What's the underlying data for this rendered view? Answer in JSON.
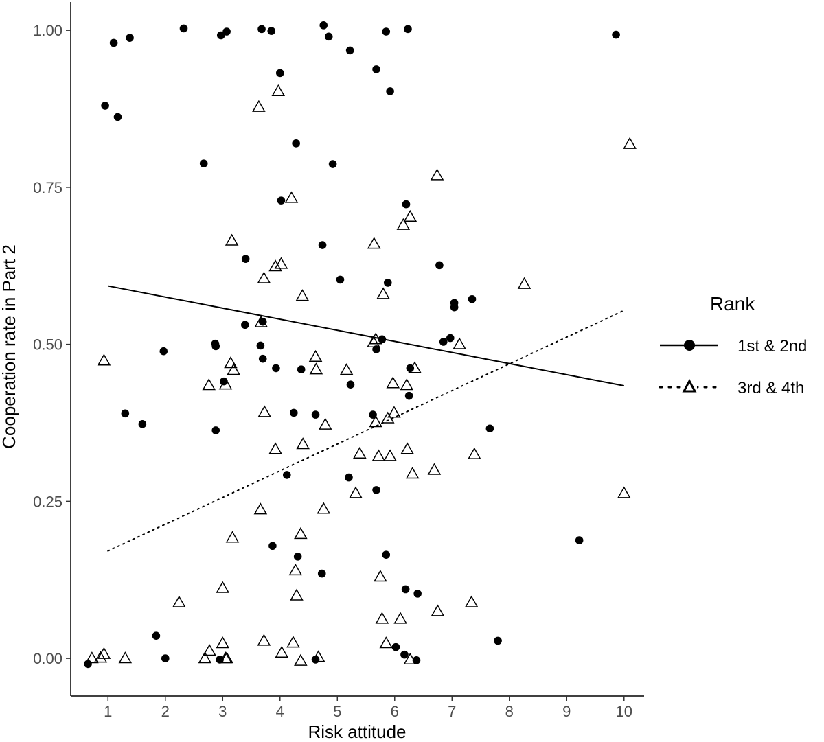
{
  "chart_data": {
    "type": "scatter",
    "title": "",
    "xlabel": "Risk attitude",
    "ylabel": "Cooperation rate in Part 2",
    "xlim": [
      0.35,
      10.35
    ],
    "ylim": [
      -0.06,
      1.045
    ],
    "x_ticks": [
      "1",
      "2",
      "3",
      "4",
      "5",
      "6",
      "7",
      "8",
      "9",
      "10"
    ],
    "y_ticks": [
      "0.00",
      "0.25",
      "0.50",
      "0.75",
      "1.00"
    ],
    "grid": false,
    "legend": {
      "title": "Rank",
      "placement": "right",
      "entries": [
        "1st & 2nd",
        "3rd & 4th"
      ]
    },
    "series": [
      {
        "name": "1st & 2nd",
        "marker": "filled-circle",
        "line_style": "solid",
        "color": "#000000",
        "trend": {
          "x": [
            1,
            10
          ],
          "y": [
            0.593,
            0.434
          ]
        },
        "points": [
          [
            0.95,
            0.88
          ],
          [
            1.1,
            0.98
          ],
          [
            1.17,
            0.862
          ],
          [
            1.38,
            0.988
          ],
          [
            2.32,
            1.003
          ],
          [
            2.97,
            0.992
          ],
          [
            3.07,
            0.998
          ],
          [
            3.68,
            1.002
          ],
          [
            3.85,
            0.999
          ],
          [
            4.0,
            0.932
          ],
          [
            4.76,
            1.008
          ],
          [
            4.85,
            0.99
          ],
          [
            5.22,
            0.968
          ],
          [
            5.68,
            0.938
          ],
          [
            5.85,
            0.998
          ],
          [
            6.23,
            1.002
          ],
          [
            5.92,
            0.903
          ],
          [
            9.86,
            0.993
          ],
          [
            2.67,
            0.788
          ],
          [
            4.28,
            0.82
          ],
          [
            4.92,
            0.787
          ],
          [
            4.02,
            0.729
          ],
          [
            6.2,
            0.723
          ],
          [
            4.74,
            0.658
          ],
          [
            3.4,
            0.636
          ],
          [
            6.78,
            0.626
          ],
          [
            5.05,
            0.603
          ],
          [
            5.88,
            0.598
          ],
          [
            7.35,
            0.572
          ],
          [
            7.04,
            0.566
          ],
          [
            7.04,
            0.559
          ],
          [
            3.39,
            0.531
          ],
          [
            3.7,
            0.536
          ],
          [
            5.78,
            0.508
          ],
          [
            6.97,
            0.51
          ],
          [
            6.85,
            0.504
          ],
          [
            5.68,
            0.492
          ],
          [
            3.66,
            0.498
          ],
          [
            2.87,
            0.501
          ],
          [
            2.88,
            0.497
          ],
          [
            1.97,
            0.489
          ],
          [
            3.7,
            0.477
          ],
          [
            3.93,
            0.462
          ],
          [
            4.37,
            0.46
          ],
          [
            6.27,
            0.462
          ],
          [
            3.02,
            0.441
          ],
          [
            5.23,
            0.436
          ],
          [
            6.25,
            0.418
          ],
          [
            1.3,
            0.39
          ],
          [
            4.24,
            0.391
          ],
          [
            4.62,
            0.388
          ],
          [
            5.62,
            0.388
          ],
          [
            1.6,
            0.373
          ],
          [
            2.88,
            0.363
          ],
          [
            7.66,
            0.366
          ],
          [
            4.12,
            0.292
          ],
          [
            5.2,
            0.288
          ],
          [
            5.68,
            0.268
          ],
          [
            3.87,
            0.179
          ],
          [
            9.22,
            0.188
          ],
          [
            4.31,
            0.162
          ],
          [
            5.85,
            0.165
          ],
          [
            4.73,
            0.135
          ],
          [
            6.19,
            0.11
          ],
          [
            6.4,
            0.103
          ],
          [
            1.84,
            0.036
          ],
          [
            7.8,
            0.028
          ],
          [
            2.0,
            0.0
          ],
          [
            2.95,
            -0.002
          ],
          [
            6.02,
            0.018
          ],
          [
            6.17,
            0.006
          ],
          [
            6.38,
            -0.003
          ],
          [
            4.62,
            -0.002
          ],
          [
            0.65,
            -0.009
          ]
        ]
      },
      {
        "name": "3rd & 4th",
        "marker": "open-triangle",
        "line_style": "dotted",
        "color": "#000000",
        "trend": {
          "x": [
            1,
            10
          ],
          "y": [
            0.171,
            0.554
          ]
        },
        "points": [
          [
            3.97,
            0.903
          ],
          [
            3.63,
            0.878
          ],
          [
            10.1,
            0.819
          ],
          [
            6.74,
            0.769
          ],
          [
            4.2,
            0.733
          ],
          [
            6.27,
            0.703
          ],
          [
            6.15,
            0.69
          ],
          [
            3.16,
            0.665
          ],
          [
            5.64,
            0.66
          ],
          [
            4.02,
            0.628
          ],
          [
            3.92,
            0.624
          ],
          [
            3.72,
            0.605
          ],
          [
            8.26,
            0.596
          ],
          [
            4.39,
            0.577
          ],
          [
            5.8,
            0.58
          ],
          [
            3.67,
            0.535
          ],
          [
            5.67,
            0.508
          ],
          [
            5.63,
            0.503
          ],
          [
            7.13,
            0.5
          ],
          [
            0.93,
            0.474
          ],
          [
            3.14,
            0.47
          ],
          [
            4.62,
            0.48
          ],
          [
            5.16,
            0.459
          ],
          [
            3.19,
            0.459
          ],
          [
            4.63,
            0.46
          ],
          [
            2.76,
            0.435
          ],
          [
            3.05,
            0.436
          ],
          [
            5.97,
            0.438
          ],
          [
            6.21,
            0.435
          ],
          [
            6.35,
            0.462
          ],
          [
            3.73,
            0.392
          ],
          [
            5.99,
            0.391
          ],
          [
            5.88,
            0.382
          ],
          [
            4.79,
            0.372
          ],
          [
            5.67,
            0.376
          ],
          [
            3.92,
            0.333
          ],
          [
            4.4,
            0.341
          ],
          [
            5.39,
            0.326
          ],
          [
            5.72,
            0.322
          ],
          [
            5.92,
            0.322
          ],
          [
            6.22,
            0.333
          ],
          [
            7.39,
            0.325
          ],
          [
            6.31,
            0.294
          ],
          [
            6.69,
            0.3
          ],
          [
            5.32,
            0.263
          ],
          [
            10.0,
            0.263
          ],
          [
            3.66,
            0.237
          ],
          [
            4.76,
            0.238
          ],
          [
            4.36,
            0.198
          ],
          [
            3.17,
            0.192
          ],
          [
            4.27,
            0.14
          ],
          [
            5.75,
            0.13
          ],
          [
            3.0,
            0.112
          ],
          [
            4.29,
            0.1
          ],
          [
            2.24,
            0.089
          ],
          [
            6.75,
            0.075
          ],
          [
            7.34,
            0.089
          ],
          [
            5.78,
            0.063
          ],
          [
            6.1,
            0.063
          ],
          [
            0.72,
            0.0
          ],
          [
            0.87,
            0.001
          ],
          [
            0.93,
            0.007
          ],
          [
            1.3,
            0.0
          ],
          [
            2.77,
            0.012
          ],
          [
            3.0,
            0.024
          ],
          [
            2.69,
            0.0
          ],
          [
            3.05,
            0.0
          ],
          [
            3.07,
            0.0
          ],
          [
            3.72,
            0.028
          ],
          [
            4.03,
            0.009
          ],
          [
            4.23,
            0.025
          ],
          [
            4.36,
            -0.004
          ],
          [
            4.67,
            0.002
          ],
          [
            5.85,
            0.024
          ],
          [
            6.27,
            -0.002
          ]
        ]
      }
    ]
  }
}
